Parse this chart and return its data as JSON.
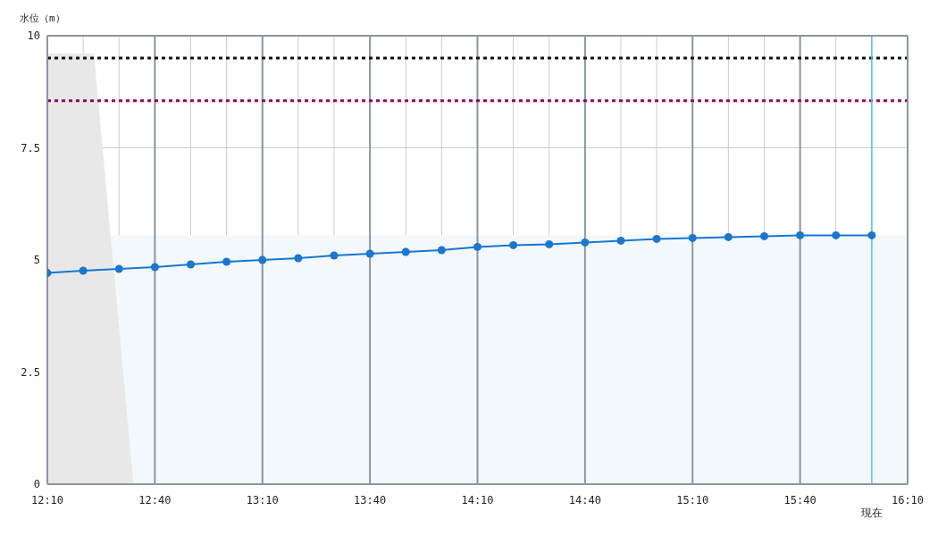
{
  "chart_data": {
    "type": "line",
    "ylabel": "水位（m）",
    "x": [
      12.1667,
      12.3333,
      12.5,
      12.6667,
      12.8333,
      13,
      13.1667,
      13.3333,
      13.5,
      13.6667,
      13.8333,
      14,
      14.1667,
      14.3333,
      14.5,
      14.6667,
      14.8333,
      15,
      15.1667,
      15.3333,
      15.5,
      15.6667,
      15.8333,
      16
    ],
    "series": [
      {
        "type": "area",
        "color": "#e8e8e8",
        "x": [
          12.1667,
          12.3833,
          12.5667
        ],
        "values": [
          9.6,
          9.6,
          0
        ]
      },
      {
        "color": "#1976d2",
        "marker": "circle",
        "values": [
          4.71,
          4.76,
          4.8,
          4.84,
          4.9,
          4.96,
          5.0,
          5.04,
          5.1,
          5.14,
          5.18,
          5.22,
          5.29,
          5.33,
          5.35,
          5.39,
          5.43,
          5.47,
          5.49,
          5.51,
          5.53,
          5.55,
          5.55,
          5.55
        ]
      }
    ],
    "xlim": [
      12.1667,
      16.1667
    ],
    "xticks": [
      {
        "value": 12.1667,
        "label": "12:10"
      },
      {
        "value": 12.3333,
        "label": null
      },
      {
        "value": 12.5,
        "label": null
      },
      {
        "value": 12.6667,
        "label": "12:40"
      },
      {
        "value": 12.8333,
        "label": null
      },
      {
        "value": 13,
        "label": null
      },
      {
        "value": 13.1667,
        "label": "13:10"
      },
      {
        "value": 13.3333,
        "label": null
      },
      {
        "value": 13.5,
        "label": null
      },
      {
        "value": 13.6667,
        "label": "13:40"
      },
      {
        "value": 13.8333,
        "label": null
      },
      {
        "value": 14,
        "label": null
      },
      {
        "value": 14.1667,
        "label": "14:10"
      },
      {
        "value": 14.3333,
        "label": null
      },
      {
        "value": 14.5,
        "label": null
      },
      {
        "value": 14.6667,
        "label": "14:40"
      },
      {
        "value": 14.8333,
        "label": null
      },
      {
        "value": 15,
        "label": null
      },
      {
        "value": 15.1667,
        "label": "15:10"
      },
      {
        "value": 15.3333,
        "label": null
      },
      {
        "value": 15.5,
        "label": null
      },
      {
        "value": 15.6667,
        "label": "15:40"
      },
      {
        "value": 15.8333,
        "label": null
      },
      {
        "value": 16,
        "label": null
      },
      {
        "value": 16.1667,
        "label": "16:10"
      }
    ],
    "ylim": [
      0,
      10
    ],
    "yticks": [
      0,
      2.5,
      5,
      7.5,
      10
    ],
    "grid": true,
    "line_style": "solid",
    "ref_lines": [
      {
        "axis": "y",
        "value": 9.5,
        "color": "#111111",
        "line_style": "dotted"
      },
      {
        "axis": "y",
        "value": 8.55,
        "color": "#990066",
        "line_style": "dotted"
      },
      {
        "axis": "x",
        "value": 16,
        "label": "現在",
        "color": "#4fc3f7",
        "line_style": "solid"
      }
    ],
    "bands": [
      {
        "axis": "y",
        "from": 0,
        "to": 5.55,
        "color": "#f3f8fd"
      }
    ]
  }
}
